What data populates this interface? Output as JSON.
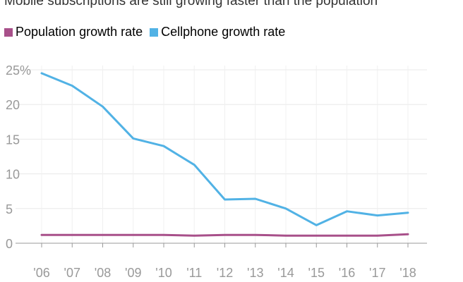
{
  "chart_data": {
    "type": "line",
    "title": "Mobile subscriptions are still growing faster than the population",
    "xlabel": "",
    "ylabel": "",
    "categories": [
      "'06",
      "'07",
      "'08",
      "'09",
      "'10",
      "'11",
      "'12",
      "'13",
      "'14",
      "'15",
      "'16",
      "'17",
      "'18"
    ],
    "ylim": [
      0,
      25
    ],
    "yticks": [
      0,
      5,
      10,
      15,
      20,
      25
    ],
    "ytick_labels": [
      "0",
      "5",
      "10",
      "15",
      "20",
      "25%"
    ],
    "grid": true,
    "legend_position": "top-left",
    "series": [
      {
        "name": "Population growth rate",
        "color": "#a8508a",
        "values": [
          1.2,
          1.2,
          1.2,
          1.2,
          1.2,
          1.1,
          1.2,
          1.2,
          1.1,
          1.1,
          1.1,
          1.1,
          1.3
        ]
      },
      {
        "name": "Cellphone growth rate",
        "color": "#51b2e5",
        "values": [
          24.5,
          22.7,
          19.7,
          15.1,
          14.0,
          11.3,
          6.3,
          6.4,
          5.0,
          2.6,
          4.6,
          4.0,
          4.4
        ]
      }
    ]
  }
}
